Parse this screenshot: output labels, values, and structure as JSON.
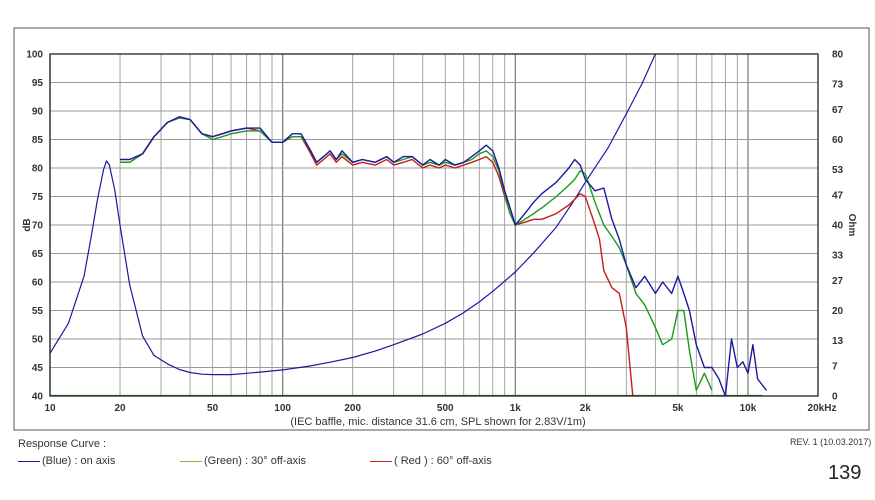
{
  "chart_data": {
    "type": "line",
    "title": "Response Curve :",
    "xlabel": "(IEC baffle, mic. distance 31.6 cm, SPL shown for 2.83V/1m)",
    "ylabel": "dB",
    "y2label": "Ohm",
    "x_scale": "log",
    "xlim": [
      10,
      20000
    ],
    "ylim": [
      40,
      100
    ],
    "y2lim": [
      0,
      80
    ],
    "grid": true,
    "x_tick_labels": [
      {
        "value": 10,
        "label": "10"
      },
      {
        "value": 20,
        "label": "20"
      },
      {
        "value": 50,
        "label": "50"
      },
      {
        "value": 100,
        "label": "100"
      },
      {
        "value": 200,
        "label": "200"
      },
      {
        "value": 500,
        "label": "500"
      },
      {
        "value": 1000,
        "label": "1k"
      },
      {
        "value": 2000,
        "label": "2k"
      },
      {
        "value": 5000,
        "label": "5k"
      },
      {
        "value": 10000,
        "label": "10k"
      },
      {
        "value": 20000,
        "label": "20kHz"
      }
    ],
    "y_ticks": [
      {
        "value": 100,
        "label": "100"
      },
      {
        "value": 95,
        "label": "95"
      },
      {
        "value": 90,
        "label": "90"
      },
      {
        "value": 85,
        "label": "85"
      },
      {
        "value": 80,
        "label": "80"
      },
      {
        "value": 75,
        "label": "75"
      },
      {
        "value": 70,
        "label": "70"
      },
      {
        "value": 65,
        "label": "65"
      },
      {
        "value": 60,
        "label": "60"
      },
      {
        "value": 55,
        "label": "55"
      },
      {
        "value": 50,
        "label": "50"
      },
      {
        "value": 45,
        "label": "45"
      },
      {
        "value": 40,
        "label": "40"
      }
    ],
    "y2_ticks": [
      {
        "value": 80,
        "label": "80"
      },
      {
        "value": 73,
        "label": "73"
      },
      {
        "value": 67,
        "label": "67"
      },
      {
        "value": 60,
        "label": "60"
      },
      {
        "value": 53,
        "label": "53"
      },
      {
        "value": 47,
        "label": "47"
      },
      {
        "value": 40,
        "label": "40"
      },
      {
        "value": 33,
        "label": "33"
      },
      {
        "value": 27,
        "label": "27"
      },
      {
        "value": 20,
        "label": "20"
      },
      {
        "value": 13,
        "label": "13"
      },
      {
        "value": 7,
        "label": "7"
      },
      {
        "value": 0,
        "label": "0"
      }
    ],
    "series": [
      {
        "key": "impedance",
        "color": "#1a1aa0",
        "axis": "y2",
        "x": [
          10,
          12,
          14,
          15,
          16,
          17,
          17.5,
          18,
          19,
          20,
          22,
          25,
          28,
          32,
          36,
          40,
          45,
          50,
          60,
          70,
          80,
          100,
          130,
          160,
          200,
          250,
          300,
          400,
          500,
          600,
          700,
          800,
          1000,
          1200,
          1500,
          1800,
          2000,
          2500,
          3000,
          3500,
          4000
        ],
        "y": [
          10,
          17,
          28,
          37,
          46,
          53,
          55,
          54,
          48,
          40,
          26,
          14,
          9.5,
          7.5,
          6.2,
          5.5,
          5.1,
          5.0,
          5.0,
          5.3,
          5.6,
          6.1,
          7.0,
          7.9,
          9.0,
          10.5,
          12.0,
          14.5,
          17.0,
          19.5,
          22.0,
          24.5,
          29.0,
          33.5,
          39.5,
          46.0,
          50.0,
          58.0,
          66.0,
          73.0,
          80.0
        ]
      },
      {
        "key": "on-axis",
        "color": "#1a1aa0",
        "axis": "y",
        "x": [
          20,
          22,
          25,
          28,
          32,
          36,
          40,
          45,
          50,
          55,
          60,
          70,
          80,
          90,
          100,
          110,
          120,
          130,
          140,
          150,
          160,
          170,
          180,
          200,
          220,
          250,
          280,
          300,
          330,
          360,
          400,
          430,
          470,
          500,
          550,
          600,
          650,
          700,
          750,
          800,
          850,
          900,
          950,
          1000,
          1100,
          1200,
          1300,
          1500,
          1700,
          1800,
          1900,
          2000,
          2200,
          2400,
          2600,
          2800,
          3000,
          3300,
          3600,
          4000,
          4300,
          4700,
          5000,
          5300,
          5600,
          6000,
          6500,
          7000,
          7500,
          8000,
          8500,
          9000,
          9500,
          10000,
          10500,
          11000,
          12000
        ],
        "y": [
          81.5,
          81.5,
          82.5,
          85.5,
          88,
          89,
          88.5,
          86,
          85.5,
          86,
          86.5,
          87,
          87,
          84.5,
          84.5,
          86,
          86,
          83.5,
          81,
          82,
          83,
          81.5,
          83,
          81,
          81.5,
          81,
          82,
          81,
          82,
          82,
          80.5,
          81.5,
          80.5,
          81.5,
          80.5,
          81,
          82,
          83,
          84,
          83,
          80,
          76,
          73,
          70,
          72,
          74,
          75.5,
          77.5,
          80,
          81.5,
          80.5,
          78,
          76,
          76.5,
          71,
          67.5,
          63,
          59,
          61,
          58,
          60,
          58,
          61,
          58,
          55,
          49,
          45,
          45,
          43,
          40,
          50,
          45,
          46,
          44,
          49,
          43,
          41
        ]
      },
      {
        "key": "30deg",
        "color": "#1a9a1a",
        "axis": "y",
        "x": [
          20,
          22,
          25,
          28,
          32,
          36,
          40,
          45,
          50,
          55,
          60,
          70,
          80,
          90,
          100,
          110,
          120,
          130,
          140,
          150,
          160,
          170,
          180,
          200,
          220,
          250,
          280,
          300,
          330,
          360,
          400,
          430,
          470,
          500,
          550,
          600,
          650,
          700,
          750,
          800,
          850,
          900,
          950,
          1000,
          1100,
          1200,
          1300,
          1500,
          1700,
          1800,
          1900,
          2000,
          2200,
          2400,
          2600,
          2800,
          3000,
          3300,
          3600,
          4000,
          4300,
          4700,
          5000,
          5300,
          5600,
          6000,
          6500,
          7000
        ],
        "y": [
          81,
          81,
          82.5,
          85.5,
          88,
          88.8,
          88.5,
          86,
          85,
          85.5,
          86,
          86.5,
          86.5,
          84.5,
          84.5,
          85.5,
          85.5,
          83.5,
          81,
          82,
          83,
          81.5,
          82.5,
          81,
          81.5,
          81,
          82,
          81,
          81.5,
          82,
          80.5,
          81,
          80.5,
          81,
          80.5,
          81,
          81.5,
          82.5,
          83,
          82,
          79.5,
          75.5,
          72,
          70,
          71,
          72,
          73,
          75,
          77,
          78,
          79.5,
          79,
          74,
          70,
          68,
          66,
          63,
          58,
          56,
          52,
          49,
          50,
          55,
          55,
          48,
          41,
          44,
          41
        ]
      },
      {
        "key": "60deg",
        "color": "#cc1a1a",
        "axis": "y",
        "x": [
          20,
          22,
          25,
          28,
          32,
          36,
          40,
          45,
          50,
          55,
          60,
          70,
          80,
          90,
          100,
          110,
          120,
          130,
          140,
          150,
          160,
          170,
          180,
          200,
          220,
          250,
          280,
          300,
          330,
          360,
          400,
          430,
          470,
          500,
          550,
          600,
          650,
          700,
          750,
          800,
          850,
          900,
          950,
          1000,
          1100,
          1200,
          1300,
          1500,
          1700,
          1800,
          1900,
          2000,
          2200,
          2300,
          2400,
          2600,
          2800,
          3000,
          3200
        ],
        "y": [
          81,
          81,
          82.5,
          85.5,
          88,
          88.8,
          88.5,
          86,
          85.5,
          86,
          86.5,
          87,
          86.5,
          84.5,
          84.5,
          85.5,
          85.5,
          83,
          80.5,
          81.5,
          82.5,
          81,
          82,
          80.5,
          81,
          80.5,
          81.5,
          80.5,
          81,
          81.5,
          80,
          80.5,
          80,
          80.5,
          80,
          80.5,
          81,
          81.5,
          82,
          81,
          78.5,
          75,
          72,
          70,
          70.5,
          71,
          71,
          72,
          73.5,
          74.5,
          75.5,
          75,
          70,
          67.5,
          62,
          59,
          58,
          52,
          40
        ]
      }
    ],
    "lowbaseline": {
      "x": [
        10,
        11500
      ],
      "y": [
        40.1,
        40.1
      ],
      "color": "#1a9a1a"
    },
    "legend": {
      "title": "Response Curve :",
      "items": [
        {
          "series": "on-axis",
          "label": "(Blue)  : on axis",
          "color": "#1a1aa0"
        },
        {
          "series": "30deg",
          "label": "(Green) : 30° off-axis",
          "color": "#7cc03a"
        },
        {
          "series": "60deg",
          "label": "( Red ) : 60° off-axis",
          "color": "#e02020"
        }
      ]
    }
  },
  "footer": {
    "revision": "REV. 1 (10.03.2017)",
    "page_number": "139"
  }
}
